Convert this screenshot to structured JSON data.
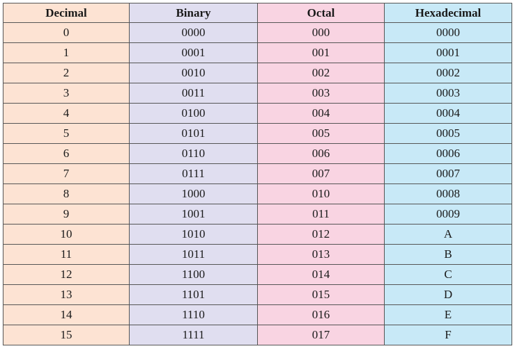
{
  "colors": {
    "decimal_bg": "#fde3d3",
    "binary_bg": "#e0def0",
    "octal_bg": "#f9d4e2",
    "hexadecimal_bg": "#c8e9f7",
    "border": "#555555"
  },
  "table": {
    "headers": [
      "Decimal",
      "Binary",
      "Octal",
      "Hexadecimal"
    ],
    "rows": [
      [
        "0",
        "0000",
        "000",
        "0000"
      ],
      [
        "1",
        "0001",
        "001",
        "0001"
      ],
      [
        "2",
        "0010",
        "002",
        "0002"
      ],
      [
        "3",
        "0011",
        "003",
        "0003"
      ],
      [
        "4",
        "0100",
        "004",
        "0004"
      ],
      [
        "5",
        "0101",
        "005",
        "0005"
      ],
      [
        "6",
        "0110",
        "006",
        "0006"
      ],
      [
        "7",
        "0111",
        "007",
        "0007"
      ],
      [
        "8",
        "1000",
        "010",
        "0008"
      ],
      [
        "9",
        "1001",
        "011",
        "0009"
      ],
      [
        "10",
        "1010",
        "012",
        "A"
      ],
      [
        "11",
        "1011",
        "013",
        "B"
      ],
      [
        "12",
        "1100",
        "014",
        "C"
      ],
      [
        "13",
        "1101",
        "015",
        "D"
      ],
      [
        "14",
        "1110",
        "016",
        "E"
      ],
      [
        "15",
        "1111",
        "017",
        "F"
      ]
    ]
  }
}
